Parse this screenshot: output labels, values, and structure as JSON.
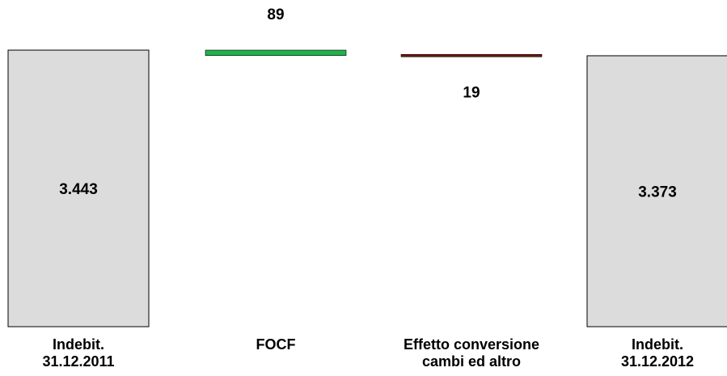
{
  "chart_data": {
    "type": "bar",
    "subtype": "waterfall",
    "title": "",
    "xlabel": "",
    "ylabel": "",
    "grid": false,
    "legend": "none",
    "categories": [
      [
        "Indebit.",
        "31.12.2011"
      ],
      [
        "FOCF"
      ],
      [
        "Effetto conversione",
        "cambi ed altro"
      ],
      [
        "Indebit.",
        "31.12.2012"
      ]
    ],
    "bars": [
      {
        "kind": "total",
        "start": 0,
        "end": 3443,
        "value": 3443,
        "label": "3.443",
        "color": "#dcdcdc"
      },
      {
        "kind": "delta",
        "start": 3443,
        "end": 3354,
        "value": -89,
        "label": "89",
        "color": "#22b14c"
      },
      {
        "kind": "delta",
        "start": 3354,
        "end": 3373,
        "value": 19,
        "label": "19",
        "color": "#6b1a0c"
      },
      {
        "kind": "total",
        "start": 0,
        "end": 3373,
        "value": 3373,
        "label": "3.373",
        "color": "#dcdcdc"
      }
    ]
  }
}
